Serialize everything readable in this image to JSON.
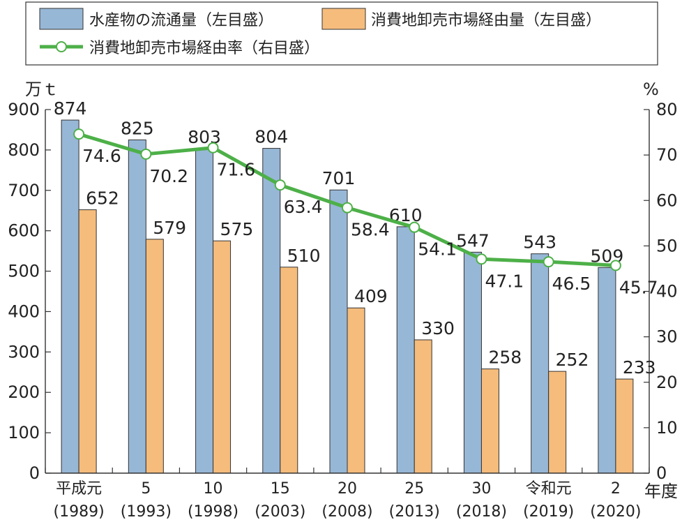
{
  "legend": {
    "series1": "水産物の流通量（左目盛）",
    "series2": "消費地卸売市場経由量（左目盛）",
    "series3": "消費地卸売市場経由率（右目盛）"
  },
  "axes": {
    "left_unit": "万ｔ",
    "right_unit": "%",
    "x_unit": "年度"
  },
  "colors": {
    "series1": "#97b7d6",
    "series2": "#f5bc7c",
    "series3": "#4db048"
  },
  "chart_data": {
    "type": "bar",
    "categories": [
      [
        "平成元",
        "(1989)"
      ],
      [
        "5",
        "(1993)"
      ],
      [
        "10",
        "(1998)"
      ],
      [
        "15",
        "(2003)"
      ],
      [
        "20",
        "(2008)"
      ],
      [
        "25",
        "(2013)"
      ],
      [
        "30",
        "(2018)"
      ],
      [
        "令和元",
        "(2019)"
      ],
      [
        "2",
        "(2020)"
      ]
    ],
    "series": [
      {
        "name": "水産物の流通量（左目盛）",
        "type": "bar",
        "axis": "left",
        "values": [
          874,
          825,
          803,
          804,
          701,
          610,
          547,
          543,
          509
        ]
      },
      {
        "name": "消費地卸売市場経由量（左目盛）",
        "type": "bar",
        "axis": "left",
        "values": [
          652,
          579,
          575,
          510,
          409,
          330,
          258,
          252,
          233
        ]
      },
      {
        "name": "消費地卸売市場経由率（右目盛）",
        "type": "line",
        "axis": "right",
        "values": [
          74.6,
          70.2,
          71.6,
          63.4,
          58.4,
          54.1,
          47.1,
          46.5,
          45.7
        ]
      }
    ],
    "y_left": {
      "label": "万ｔ",
      "lim": [
        0,
        900
      ],
      "ticks": [
        0,
        100,
        200,
        300,
        400,
        500,
        600,
        700,
        800,
        900
      ]
    },
    "y_right": {
      "label": "%",
      "lim": [
        0,
        80
      ],
      "ticks": [
        0,
        10,
        20,
        30,
        40,
        50,
        60,
        70,
        80
      ]
    },
    "xlabel": "年度",
    "grid": false,
    "legend_position": "top-left"
  }
}
